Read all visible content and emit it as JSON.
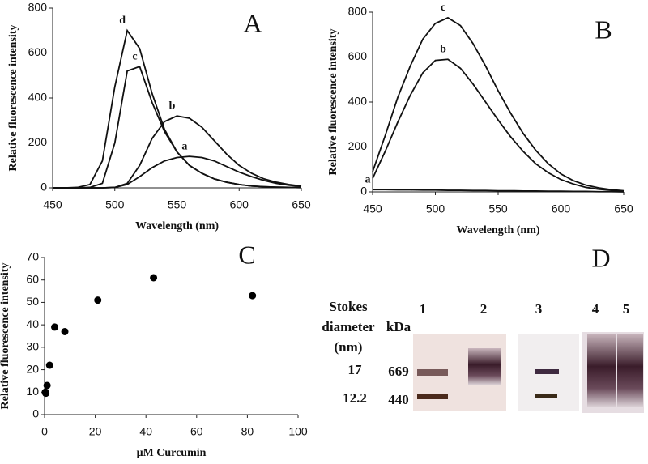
{
  "chart_data": [
    {
      "type": "line",
      "label": "A",
      "xlabel": "Wavelength (nm)",
      "ylabel": "Relative fluorescence intensity",
      "xlim": [
        450,
        650
      ],
      "ylim": [
        0,
        800
      ],
      "xticks": [
        450,
        500,
        550,
        600,
        650
      ],
      "yticks": [
        0,
        200,
        400,
        600,
        800
      ],
      "x": [
        450,
        460,
        470,
        480,
        490,
        500,
        510,
        520,
        530,
        540,
        550,
        560,
        570,
        580,
        590,
        600,
        610,
        620,
        630,
        640,
        650
      ],
      "series": [
        {
          "name": "d",
          "color": "#111111",
          "values": [
            0,
            0,
            2,
            15,
            120,
            450,
            700,
            620,
            420,
            260,
            160,
            100,
            65,
            40,
            25,
            15,
            8,
            5,
            3,
            2,
            1
          ]
        },
        {
          "name": "c",
          "color": "#111111",
          "values": [
            0,
            0,
            0,
            2,
            20,
            200,
            520,
            540,
            380,
            250,
            160,
            100,
            65,
            40,
            25,
            15,
            8,
            5,
            3,
            2,
            1
          ]
        },
        {
          "name": "b",
          "color": "#111111",
          "values": [
            0,
            0,
            0,
            0,
            0,
            2,
            20,
            100,
            220,
            295,
            320,
            310,
            270,
            210,
            150,
            100,
            65,
            40,
            25,
            15,
            8
          ]
        },
        {
          "name": "a",
          "color": "#111111",
          "values": [
            0,
            0,
            0,
            0,
            0,
            2,
            15,
            50,
            90,
            120,
            135,
            140,
            135,
            120,
            95,
            70,
            50,
            33,
            20,
            12,
            6
          ]
        }
      ]
    },
    {
      "type": "line",
      "label": "B",
      "xlabel": "Wavelength (nm)",
      "ylabel": "Relative fluorescence intensity",
      "xlim": [
        450,
        650
      ],
      "ylim": [
        0,
        800
      ],
      "xticks": [
        450,
        500,
        550,
        600,
        650
      ],
      "yticks": [
        0,
        200,
        400,
        600,
        800
      ],
      "x": [
        450,
        460,
        470,
        480,
        490,
        500,
        510,
        520,
        530,
        540,
        550,
        560,
        570,
        580,
        590,
        600,
        610,
        620,
        630,
        640,
        650
      ],
      "series": [
        {
          "name": "c",
          "color": "#111111",
          "values": [
            90,
            250,
            420,
            560,
            680,
            750,
            775,
            740,
            660,
            560,
            450,
            350,
            260,
            185,
            125,
            80,
            50,
            30,
            18,
            10,
            5
          ]
        },
        {
          "name": "b",
          "color": "#111111",
          "values": [
            60,
            180,
            310,
            430,
            530,
            585,
            590,
            550,
            480,
            400,
            320,
            245,
            180,
            125,
            85,
            55,
            35,
            20,
            12,
            7,
            4
          ]
        },
        {
          "name": "a",
          "color": "#111111",
          "values": [
            10,
            10,
            9,
            9,
            8,
            8,
            7,
            7,
            6,
            6,
            5,
            5,
            4,
            4,
            3,
            3,
            2,
            2,
            1,
            1,
            0
          ]
        }
      ]
    },
    {
      "type": "scatter",
      "label": "C",
      "xlabel": "μM Curcumin",
      "ylabel": "Relative fluorescence intensity",
      "xlim": [
        0,
        100
      ],
      "ylim": [
        0,
        70
      ],
      "xticks": [
        0,
        20,
        40,
        60,
        80,
        100
      ],
      "yticks": [
        0,
        10,
        20,
        30,
        40,
        50,
        60,
        70
      ],
      "color": "#000000",
      "x": [
        0.3,
        0.5,
        1,
        2,
        4,
        8,
        21,
        43,
        82
      ],
      "values": [
        10,
        9.5,
        13,
        22,
        39,
        37,
        51,
        61,
        53
      ]
    },
    {
      "type": "gel",
      "label": "D",
      "stokes_header": [
        "Stokes",
        "diameter",
        "(nm)"
      ],
      "mass_header": "kDa",
      "lanes": [
        "1",
        "2",
        "3",
        "4",
        "5"
      ],
      "stokes": [
        "17",
        "12.2"
      ],
      "masses": [
        "669",
        "440"
      ]
    }
  ]
}
